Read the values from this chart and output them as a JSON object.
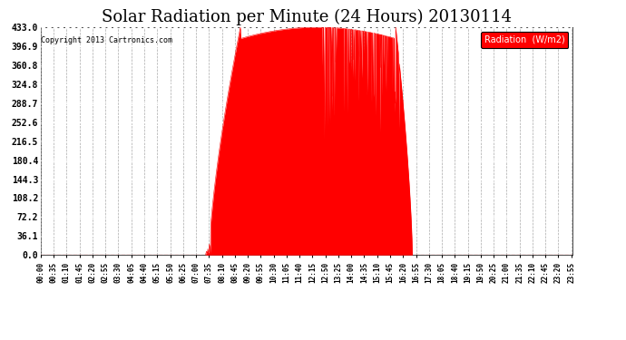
{
  "title": "Solar Radiation per Minute (24 Hours) 20130114",
  "copyright": "Copyright 2013 Cartronics.com",
  "legend_label": "Radiation  (W/m2)",
  "yticks": [
    0.0,
    36.1,
    72.2,
    108.2,
    144.3,
    180.4,
    216.5,
    252.6,
    288.7,
    324.8,
    360.8,
    396.9,
    433.0
  ],
  "ymax": 433.0,
  "ymin": 0.0,
  "fill_color": "#FF0000",
  "background_color": "#ffffff",
  "plot_bg_color": "#ffffff",
  "grid_h_color": "#ffffff",
  "grid_v_color": "#aaaaaa",
  "dashed_line_color": "#FF0000",
  "title_fontsize": 13,
  "total_minutes": 1440,
  "sunrise_minute": 455,
  "sunset_minute": 1005,
  "peak_minute": 770,
  "peak_value": 433.0,
  "tick_interval": 35
}
